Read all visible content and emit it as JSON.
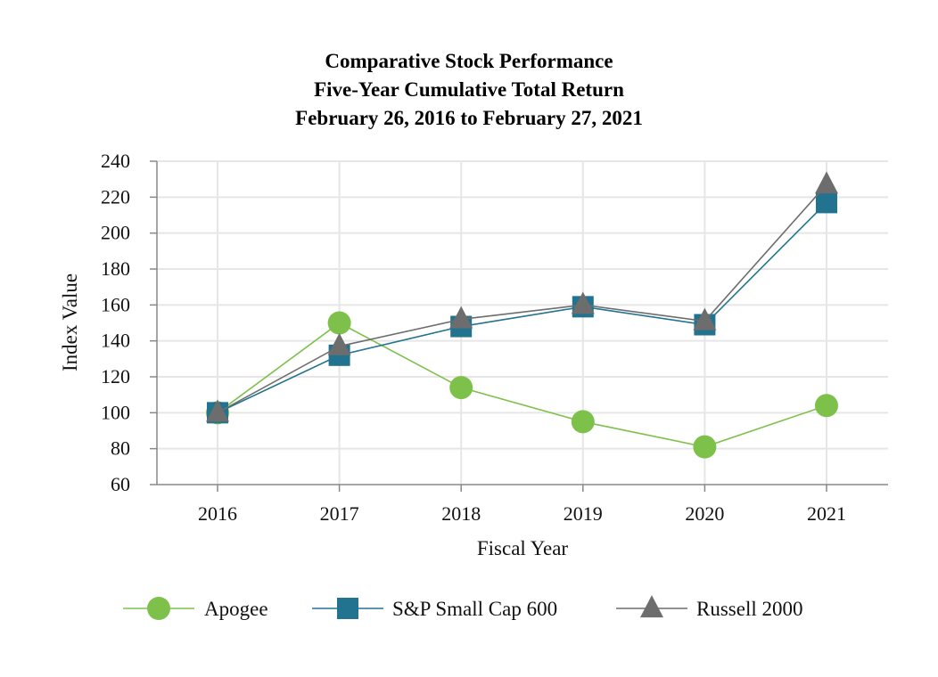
{
  "chart_data": {
    "type": "line",
    "title_lines": [
      "Comparative Stock Performance",
      "Five-Year Cumulative Total Return",
      "February 26, 2016 to February 27, 2021"
    ],
    "categories": [
      "2016",
      "2017",
      "2018",
      "2019",
      "2020",
      "2021"
    ],
    "xlabel": "Fiscal Year",
    "ylabel": "Index Value",
    "ylim": [
      60,
      240
    ],
    "yticks": [
      60,
      80,
      100,
      120,
      140,
      160,
      180,
      200,
      220,
      240
    ],
    "grid": true,
    "legend_position": "bottom",
    "series": [
      {
        "name": "Apogee",
        "marker": "circle",
        "color": "#7dc04a",
        "values": [
          100,
          150,
          114,
          95,
          81,
          104
        ]
      },
      {
        "name": "S&P Small Cap 600",
        "marker": "square",
        "color": "#22738f",
        "values": [
          100,
          132,
          148,
          159,
          149,
          217
        ]
      },
      {
        "name": "Russell 2000",
        "marker": "triangle",
        "color": "#6d6d6d",
        "values": [
          100,
          137,
          152,
          160,
          151,
          227
        ]
      }
    ]
  }
}
